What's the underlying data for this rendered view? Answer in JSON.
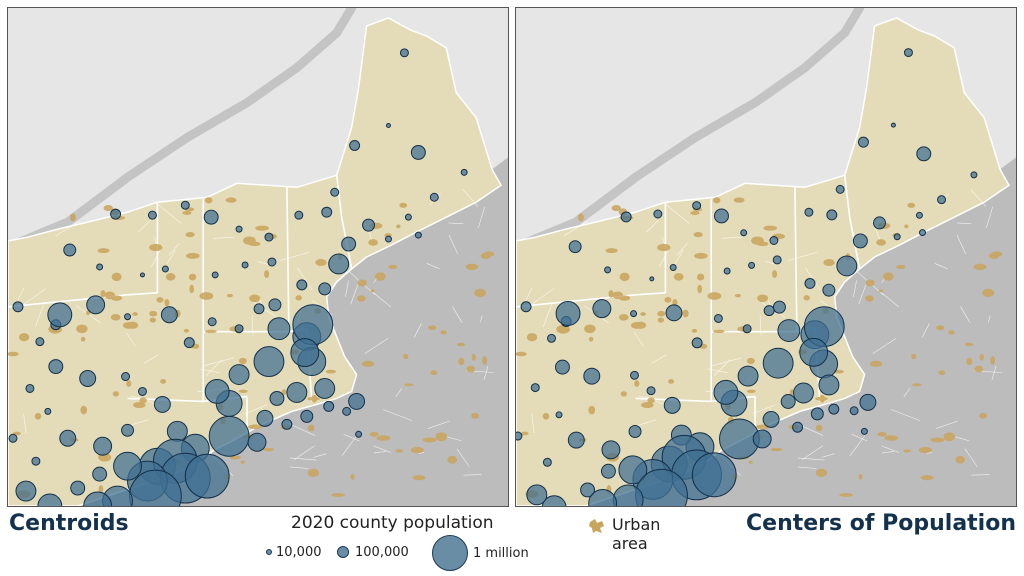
{
  "titles": {
    "left": "Centroids",
    "right": "Centers of Population"
  },
  "legend": {
    "title": "2020 county population",
    "sizes": [
      {
        "label": "10,000",
        "value": 10000
      },
      {
        "label": "100,000",
        "value": 100000
      },
      {
        "label": "1 million",
        "value": 1000000
      }
    ],
    "urban_label_line1": "Urban",
    "urban_label_line2": "area"
  },
  "colors": {
    "land": "#e4dcb8",
    "ocean_neighbor": "#bcbcbc",
    "canada": "#e6e6e6",
    "urban": "#c9a45c",
    "bubble_fill": "#3e6f92",
    "bubble_stroke": "#13304a",
    "county_lines": "#ffffff"
  },
  "map": {
    "region": "Northeastern United States",
    "panels": [
      "Centroids",
      "Centers of Population"
    ]
  }
}
